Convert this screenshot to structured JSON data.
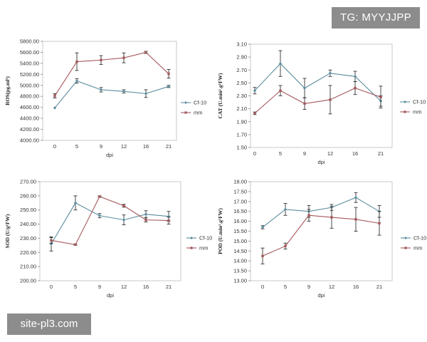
{
  "watermarks": {
    "top": "TG: MYYJJPP",
    "bottom": "site-pl3.com"
  },
  "colors": {
    "cf10": "#5b8d9e",
    "mm": "#a5585c"
  },
  "chart_data": [
    {
      "type": "line",
      "xlabel": "dpi",
      "ylabel": "ROS(pg.ml¹)",
      "categories": [
        "0",
        "5",
        "9",
        "12",
        "16",
        "21"
      ],
      "yticks": [
        "5800.00",
        "5600.00",
        "5400.00",
        "5200.00",
        "5000.00",
        "4800.00",
        "4600.00",
        "4400.00",
        "4200.00",
        "4000.00"
      ],
      "ylim": [
        4000,
        5800
      ],
      "legend_position": "right",
      "series": [
        {
          "name": "Cf-10",
          "values": [
            4590,
            5080,
            4920,
            4890,
            4850,
            4980
          ],
          "errors": [
            0,
            40,
            40,
            30,
            70,
            20
          ]
        },
        {
          "name": "mm",
          "values": [
            4810,
            5430,
            5460,
            5500,
            5600,
            5210
          ],
          "errors": [
            40,
            160,
            80,
            90,
            20,
            80
          ]
        }
      ]
    },
    {
      "type": "line",
      "xlabel": "dpi",
      "ylabel": "CAT (U.min¹.g¹FW)",
      "categories": [
        "0",
        "5",
        "9",
        "12",
        "16",
        "21"
      ],
      "yticks": [
        "3.10",
        "2.90",
        "2.70",
        "2.50",
        "2.30",
        "2.10",
        "1.90",
        "1.70",
        "1.50"
      ],
      "ylim": [
        1.5,
        3.1
      ],
      "legend_position": "right",
      "series": [
        {
          "name": "Cf-10",
          "values": [
            2.38,
            2.8,
            2.42,
            2.65,
            2.6,
            2.22
          ],
          "errors": [
            0.05,
            0.2,
            0.15,
            0.05,
            0.08,
            0.08
          ]
        },
        {
          "name": "mm",
          "values": [
            2.03,
            2.38,
            2.18,
            2.24,
            2.42,
            2.28
          ],
          "errors": [
            0.02,
            0.08,
            0.09,
            0.22,
            0.1,
            0.17
          ]
        }
      ]
    },
    {
      "type": "line",
      "xlabel": "dpi",
      "ylabel": "SOD (U/g¹FW)",
      "categories": [
        "0",
        "5",
        "9",
        "12",
        "16",
        "21"
      ],
      "yticks": [
        "270.00",
        "260.00",
        "250.00",
        "240.00",
        "230.00",
        "220.00",
        "210.00",
        "200.00"
      ],
      "ylim": [
        200,
        270
      ],
      "legend_position": "right",
      "series": [
        {
          "name": "Cf-10",
          "values": [
            226,
            255,
            246,
            243,
            247,
            245.5
          ],
          "errors": [
            5,
            5,
            1.5,
            3.5,
            2.5,
            3.5
          ]
        },
        {
          "name": "mm",
          "values": [
            228.5,
            225.5,
            259.5,
            253,
            243,
            242.5
          ],
          "errors": [
            2,
            0.5,
            0.5,
            1,
            1.5,
            2.5
          ]
        }
      ]
    },
    {
      "type": "line",
      "xlabel": "dpi",
      "ylabel": "POD (U.min¹.g¹FW)",
      "categories": [
        "0",
        "5",
        "9",
        "12",
        "16",
        "21"
      ],
      "yticks": [
        "18.00",
        "17.50",
        "17.00",
        "16.50",
        "16.00",
        "15.50",
        "15.00",
        "14.50",
        "14.00",
        "13.50",
        "13.00"
      ],
      "ylim": [
        13,
        18
      ],
      "legend_position": "right",
      "series": [
        {
          "name": "Cf-10",
          "values": [
            15.7,
            16.6,
            16.5,
            16.7,
            17.2,
            16.5
          ],
          "errors": [
            0.08,
            0.3,
            0.3,
            0.15,
            0.25,
            0.3
          ]
        },
        {
          "name": "mm",
          "values": [
            14.25,
            14.75,
            16.3,
            16.2,
            16.1,
            15.9
          ],
          "errors": [
            0.4,
            0.15,
            0.3,
            0.55,
            0.6,
            0.6
          ]
        }
      ]
    }
  ]
}
